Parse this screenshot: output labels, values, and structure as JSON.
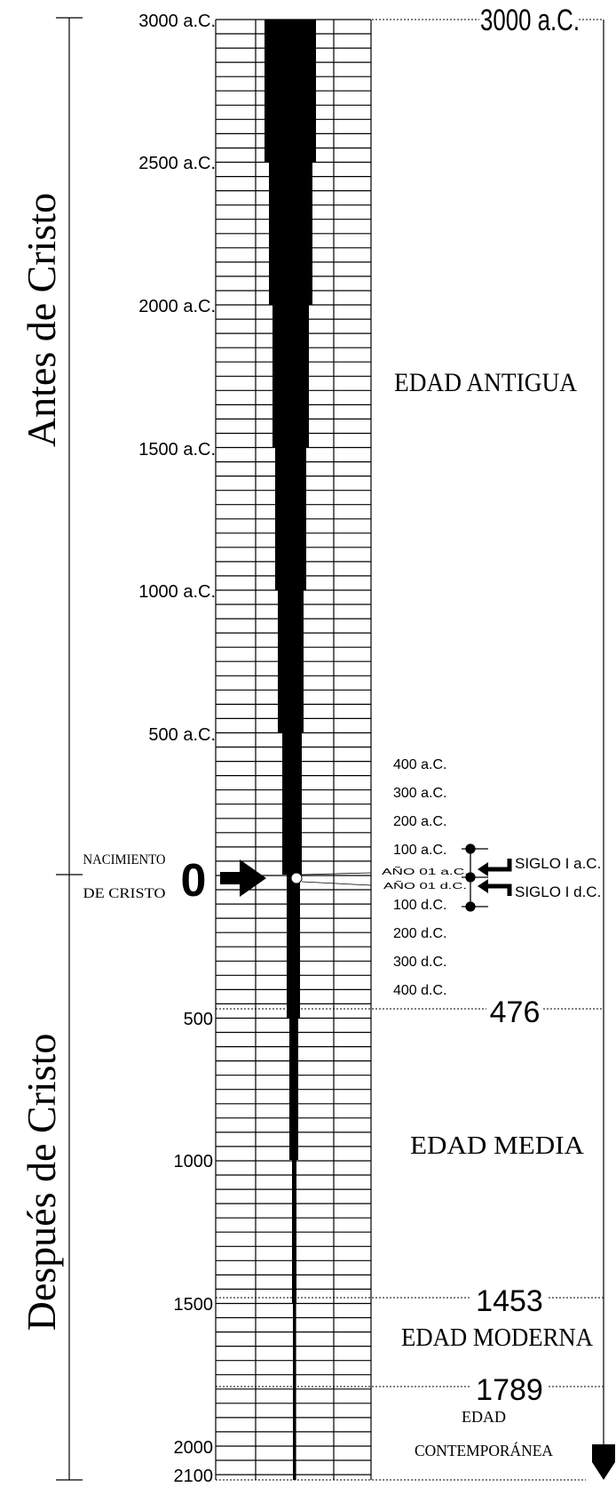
{
  "era_labels": {
    "bc": "Antes de Cristo",
    "ad": "Después de Cristo"
  },
  "year_labels_bc": [
    "3000 a.C.",
    "2500 a.C.",
    "2000 a.C.",
    "1500 a.C.",
    "1000 a.C.",
    "500 a.C."
  ],
  "year_labels_ad": [
    "500",
    "1000",
    "1500",
    "2000",
    "2100"
  ],
  "birth": {
    "zero": "0",
    "line1": "NACIMIENTO",
    "line2": "DE CRISTO"
  },
  "near_zero_labels": [
    "400 a.C.",
    "300 a.C.",
    "200 a.C.",
    "100 a.C.",
    "AÑO 01 a.C.",
    "AÑO 01 d.C.",
    "100 d.C.",
    "200 d.C.",
    "300 d.C.",
    "400 d.C."
  ],
  "centuries": {
    "bc": "SIGLO I a.C.",
    "ad": "SIGLO I d.C."
  },
  "milestones": [
    "3000 a.C.",
    "476",
    "1453",
    "1789"
  ],
  "ages": {
    "antigua": "EDAD ANTIGUA",
    "media": "EDAD MEDIA",
    "moderna": "EDAD MODERNA",
    "contemporanea_line1": "EDAD",
    "contemporanea_line2": "CONTEMPORÁNEA"
  }
}
